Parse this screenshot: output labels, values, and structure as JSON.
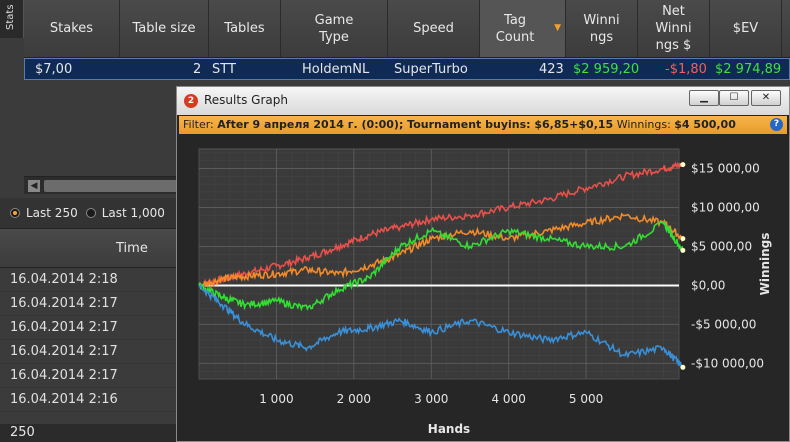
{
  "sidebar_tab": {
    "label": "Stats"
  },
  "table": {
    "headers": [
      {
        "label": "Stakes"
      },
      {
        "label": "Table size"
      },
      {
        "label": "Tables"
      },
      {
        "label": "Game Type"
      },
      {
        "label": "Speed"
      },
      {
        "label": "Tag Count"
      },
      {
        "label": "Winni ngs"
      },
      {
        "label": "Net Winni ngs $"
      },
      {
        "label": "$EV"
      }
    ],
    "sort_indicator": "▼",
    "selected_row": {
      "stakes": "$7,00",
      "table_size": "2",
      "tables": "STT",
      "game_type": "HoldemNL",
      "speed": "SuperTurbo",
      "tag_count": "423",
      "winnings": "$2 959,20",
      "net_winnings": "-$1,80",
      "ev": "$2 974,89"
    }
  },
  "filters": [
    {
      "label": "Last 250",
      "selected": true
    },
    {
      "label": "Last 1,000",
      "selected": false
    }
  ],
  "time_column": {
    "header": "Time",
    "rows": [
      "16.04.2014 2:18",
      "16.04.2014 2:17",
      "16.04.2014 2:17",
      "16.04.2014 2:17",
      "16.04.2014 2:17",
      "16.04.2014 2:16"
    ]
  },
  "footer": {
    "count": "250"
  },
  "graph_window": {
    "title": "Results Graph",
    "filter_prefix": "Filter:",
    "filter_text": "After 9 апреля 2014 г. (0:00); Tournament buyins: $6,85+$0,15",
    "winnings_label": "Winnings:",
    "winnings_value": "$4 500,00",
    "help_label": "?"
  },
  "chart_data": {
    "type": "line",
    "xlabel": "Hands",
    "ylabel": "Winnings",
    "xlim": [
      0,
      6200
    ],
    "ylim": [
      -12000,
      17500
    ],
    "x_ticks": [
      1000,
      2000,
      3000,
      4000,
      5000
    ],
    "x_tick_labels": [
      "1 000",
      "2 000",
      "3 000",
      "4 000",
      "5 000"
    ],
    "y_ticks": [
      15000,
      10000,
      5000,
      0,
      -5000,
      -10000
    ],
    "y_tick_labels": [
      "$15 000,00",
      "$10 000,00",
      "$5 000,00",
      "$0,00",
      "-$5 000,00",
      "-$10 000,00"
    ],
    "grid": true,
    "series": [
      {
        "color": "#e8504a",
        "x": [
          0,
          300,
          600,
          1000,
          1400,
          1800,
          2200,
          2600,
          3000,
          3500,
          4000,
          4500,
          5000,
          5500,
          6000,
          6250
        ],
        "values": [
          0,
          800,
          1500,
          2500,
          3500,
          5000,
          6500,
          7500,
          8500,
          9000,
          10000,
          11000,
          12500,
          14000,
          15000,
          15500
        ]
      },
      {
        "color": "#f08a2a",
        "x": [
          0,
          300,
          600,
          1000,
          1400,
          1800,
          2200,
          2600,
          3000,
          3500,
          4000,
          4500,
          5000,
          5500,
          6000,
          6250
        ],
        "values": [
          0,
          800,
          1200,
          1500,
          2000,
          1500,
          2500,
          4000,
          6000,
          7000,
          6000,
          7000,
          8000,
          9000,
          8000,
          6000
        ]
      },
      {
        "color": "#33dd33",
        "x": [
          0,
          300,
          600,
          1000,
          1400,
          1800,
          2200,
          2600,
          3000,
          3500,
          4000,
          4500,
          5000,
          5500,
          6000,
          6250
        ],
        "values": [
          0,
          -1500,
          -2500,
          -2000,
          -3000,
          -500,
          1000,
          5000,
          7000,
          5000,
          7000,
          6000,
          5000,
          5000,
          8000,
          4500
        ]
      },
      {
        "color": "#3a90d8",
        "x": [
          0,
          300,
          600,
          1000,
          1400,
          1800,
          2200,
          2600,
          3000,
          3500,
          4000,
          4500,
          5000,
          5500,
          6000,
          6250
        ],
        "values": [
          0,
          -2500,
          -5000,
          -7000,
          -8000,
          -6000,
          -5500,
          -4500,
          -6000,
          -4500,
          -6000,
          -7000,
          -6000,
          -9000,
          -8000,
          -10500
        ]
      }
    ]
  }
}
